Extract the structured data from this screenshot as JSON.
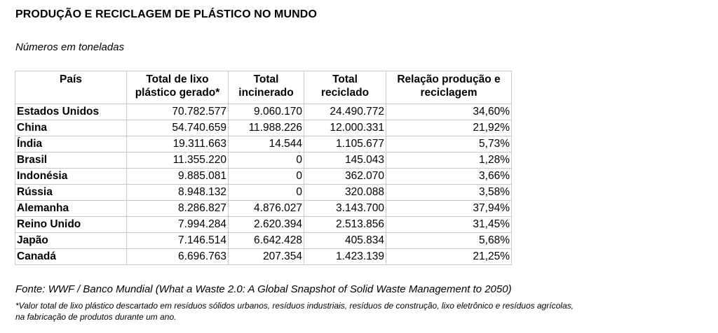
{
  "title": "PRODUÇÃO E RECICLAGEM DE PLÁSTICO NO MUNDO",
  "subtitle": "Números em toneladas",
  "chart_data": {
    "type": "table",
    "columns": [
      {
        "line1": "País",
        "line2": ""
      },
      {
        "line1": "Total de lixo",
        "line2": "plástico gerado*"
      },
      {
        "line1": "Total",
        "line2": "incinerado"
      },
      {
        "line1": "Total",
        "line2": "reciclado"
      },
      {
        "line1": "Relação produção e",
        "line2": "reciclagem"
      }
    ],
    "rows": [
      [
        "Estados Unidos",
        "70.782.577",
        "9.060.170",
        "24.490.772",
        "34,60%"
      ],
      [
        "China",
        "54.740.659",
        "11.988.226",
        "12.000.331",
        "21,92%"
      ],
      [
        "Índia",
        "19.311.663",
        "14.544",
        "1.105.677",
        "5,73%"
      ],
      [
        "Brasil",
        "11.355.220",
        "0",
        "145.043",
        "1,28%"
      ],
      [
        "Indonésia",
        "9.885.081",
        "0",
        "362.070",
        "3,66%"
      ],
      [
        "Rússia",
        "8.948.132",
        "0",
        "320.088",
        "3,58%"
      ],
      [
        "Alemanha",
        "8.286.827",
        "4.876.027",
        "3.143.700",
        "37,94%"
      ],
      [
        "Reino Unido",
        "7.994.284",
        "2.620.394",
        "2.513.856",
        "31,45%"
      ],
      [
        "Japão",
        "7.146.514",
        "6.642.428",
        "405.834",
        "5,68%"
      ],
      [
        "Canadá",
        "6.696.763",
        "207.354",
        "1.423.139",
        "21,25%"
      ]
    ]
  },
  "source": "Fonte: WWF / Banco Mundial (What a Waste 2.0: A Global Snapshot of Solid Waste Management to 2050)",
  "footnote_line1": "*Valor total de lixo plástico descartado em resíduos sólidos urbanos, resíduos industriais, resíduos de construção, lixo eletrônico e resíduos agrícolas,",
  "footnote_line2": "na fabricação de produtos durante um ano."
}
